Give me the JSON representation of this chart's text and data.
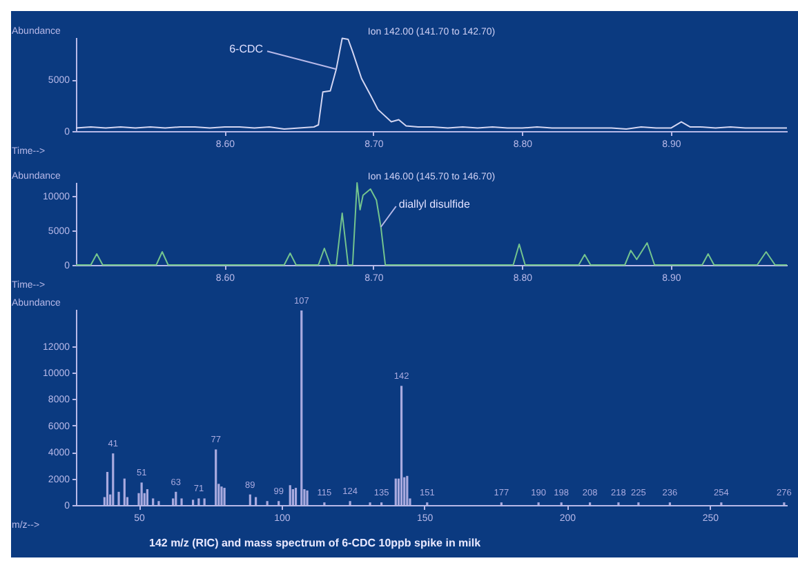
{
  "chart_data": [
    {
      "type": "line",
      "title": "Ion 142.00 (141.70 to 142.70)",
      "ylabel": "Abundance",
      "xlabel": "Time-->",
      "xlim": [
        8.5,
        8.978
      ],
      "xticks": [
        {
          "value": 8.6,
          "label": "8.60"
        },
        {
          "value": 8.7,
          "label": "8.70"
        },
        {
          "value": 8.8,
          "label": "8.80"
        },
        {
          "value": 8.9,
          "label": "8.90"
        }
      ],
      "ylim": [
        0,
        9100
      ],
      "yticks": [
        0,
        5000
      ],
      "grid": false,
      "marker": "none",
      "annotations": [
        {
          "text": "6-CDC",
          "x": 8.675,
          "y": 6000
        }
      ],
      "series": [
        {
          "color": "#d4d6f2",
          "x": [
            8.5,
            8.51,
            8.52,
            8.53,
            8.54,
            8.55,
            8.56,
            8.57,
            8.58,
            8.59,
            8.6,
            8.61,
            8.62,
            8.63,
            8.64,
            8.65,
            8.66,
            8.663,
            8.666,
            8.671,
            8.675,
            8.679,
            8.683,
            8.686,
            8.692,
            8.698,
            8.703,
            8.712,
            8.717,
            8.722,
            8.73,
            8.74,
            8.75,
            8.76,
            8.77,
            8.78,
            8.79,
            8.8,
            8.81,
            8.82,
            8.83,
            8.84,
            8.85,
            8.86,
            8.87,
            8.88,
            8.89,
            8.9,
            8.907,
            8.913,
            8.92,
            8.93,
            8.94,
            8.95,
            8.96,
            8.97,
            8.978
          ],
          "values": [
            300,
            400,
            300,
            400,
            300,
            400,
            300,
            400,
            400,
            300,
            400,
            400,
            300,
            400,
            200,
            300,
            400,
            600,
            3800,
            3900,
            6000,
            9000,
            8900,
            7700,
            5100,
            3500,
            2100,
            900,
            1100,
            500,
            400,
            400,
            300,
            400,
            300,
            400,
            300,
            300,
            400,
            300,
            300,
            300,
            300,
            300,
            200,
            400,
            300,
            300,
            900,
            400,
            400,
            300,
            400,
            300,
            300,
            300,
            300
          ]
        }
      ]
    },
    {
      "type": "line",
      "title": "Ion 146.00 (145.70 to 146.70)",
      "ylabel": "Abundance",
      "xlabel": "Time-->",
      "xlim": [
        8.5,
        8.978
      ],
      "xticks": [
        {
          "value": 8.6,
          "label": "8.60"
        },
        {
          "value": 8.7,
          "label": "8.70"
        },
        {
          "value": 8.8,
          "label": "8.80"
        },
        {
          "value": 8.9,
          "label": "8.90"
        }
      ],
      "ylim": [
        0,
        12000
      ],
      "yticks": [
        0,
        5000,
        10000
      ],
      "grid": false,
      "marker": "none",
      "annotations": [
        {
          "text": "diallyl disulfide",
          "x": 8.705,
          "y": 5500
        }
      ],
      "series": [
        {
          "color": "#74c48e",
          "x": [
            8.5,
            8.51,
            8.514,
            8.518,
            8.554,
            8.558,
            8.562,
            8.64,
            8.644,
            8.648,
            8.663,
            8.667,
            8.671,
            8.675,
            8.679,
            8.683,
            8.686,
            8.689,
            8.691,
            8.693,
            8.698,
            8.702,
            8.705,
            8.708,
            8.794,
            8.798,
            8.802,
            8.838,
            8.842,
            8.846,
            8.869,
            8.873,
            8.877,
            8.884,
            8.889,
            8.921,
            8.925,
            8.929,
            8.958,
            8.964,
            8.97,
            8.978
          ],
          "values": [
            0,
            0,
            1600,
            0,
            0,
            1900,
            0,
            0,
            1700,
            0,
            0,
            2400,
            0,
            0,
            7500,
            0,
            0,
            11900,
            8000,
            10100,
            11000,
            9400,
            5500,
            0,
            0,
            3000,
            0,
            0,
            1500,
            0,
            0,
            2100,
            800,
            3200,
            0,
            0,
            1600,
            0,
            0,
            1900,
            0,
            0
          ]
        }
      ]
    },
    {
      "type": "bar",
      "ylabel": "Abundance",
      "xlabel": "m/z-->",
      "xlim": [
        28,
        277
      ],
      "xticks": [
        50,
        100,
        150,
        200,
        250
      ],
      "ylim": [
        0,
        14800
      ],
      "yticks": [
        0,
        2000,
        4000,
        6000,
        8000,
        10000,
        12000
      ],
      "grid": false,
      "annotations": [
        "142 m/z (RIC) and mass spectrum of 6-CDC 10ppb spike in milk",
        {
          "text": "41",
          "x": 41,
          "y": 3900
        },
        {
          "text": "51",
          "x": 51,
          "y": 1700
        },
        {
          "text": "63",
          "x": 63,
          "y": 1000
        },
        {
          "text": "71",
          "x": 71,
          "y": 500
        },
        {
          "text": "77",
          "x": 77,
          "y": 4200
        },
        {
          "text": "89",
          "x": 89,
          "y": 800
        },
        {
          "text": "99",
          "x": 99,
          "y": 300
        },
        {
          "text": "107",
          "x": 107,
          "y": 14700
        },
        {
          "text": "115",
          "x": 115,
          "y": 200
        },
        {
          "text": "124",
          "x": 124,
          "y": 300
        },
        {
          "text": "135",
          "x": 135,
          "y": 200
        },
        {
          "text": "142",
          "x": 142,
          "y": 9000
        },
        {
          "text": "151",
          "x": 151,
          "y": 200
        },
        {
          "text": "177",
          "x": 177,
          "y": 200
        },
        {
          "text": "190",
          "x": 190,
          "y": 200
        },
        {
          "text": "198",
          "x": 198,
          "y": 200
        },
        {
          "text": "208",
          "x": 208,
          "y": 200
        },
        {
          "text": "218",
          "x": 218,
          "y": 200
        },
        {
          "text": "225",
          "x": 225,
          "y": 200
        },
        {
          "text": "236",
          "x": 236,
          "y": 200
        },
        {
          "text": "254",
          "x": 254,
          "y": 200
        },
        {
          "text": "276",
          "x": 276,
          "y": 200
        }
      ],
      "series": [
        {
          "color": "#a9aadf",
          "x": [
            38,
            39,
            40,
            41,
            43,
            45,
            46,
            50,
            51,
            52,
            53,
            55,
            57,
            62,
            63,
            65,
            69,
            71,
            73,
            77,
            78,
            79,
            80,
            89,
            91,
            95,
            99,
            103,
            104,
            105,
            107,
            108,
            109,
            115,
            124,
            131,
            135,
            140,
            141,
            142,
            143,
            144,
            145,
            151,
            177,
            190,
            198,
            208,
            218,
            225,
            236,
            254,
            276
          ],
          "values": [
            600,
            2500,
            800,
            3900,
            1000,
            2000,
            600,
            900,
            1700,
            900,
            1200,
            500,
            300,
            500,
            1000,
            500,
            400,
            500,
            500,
            4200,
            1600,
            1400,
            1300,
            800,
            600,
            300,
            300,
            1500,
            1200,
            1300,
            14700,
            1200,
            1100,
            200,
            300,
            200,
            200,
            2000,
            2000,
            9000,
            2100,
            2200,
            500,
            200,
            200,
            200,
            200,
            200,
            200,
            200,
            200,
            200,
            200
          ]
        }
      ]
    }
  ]
}
